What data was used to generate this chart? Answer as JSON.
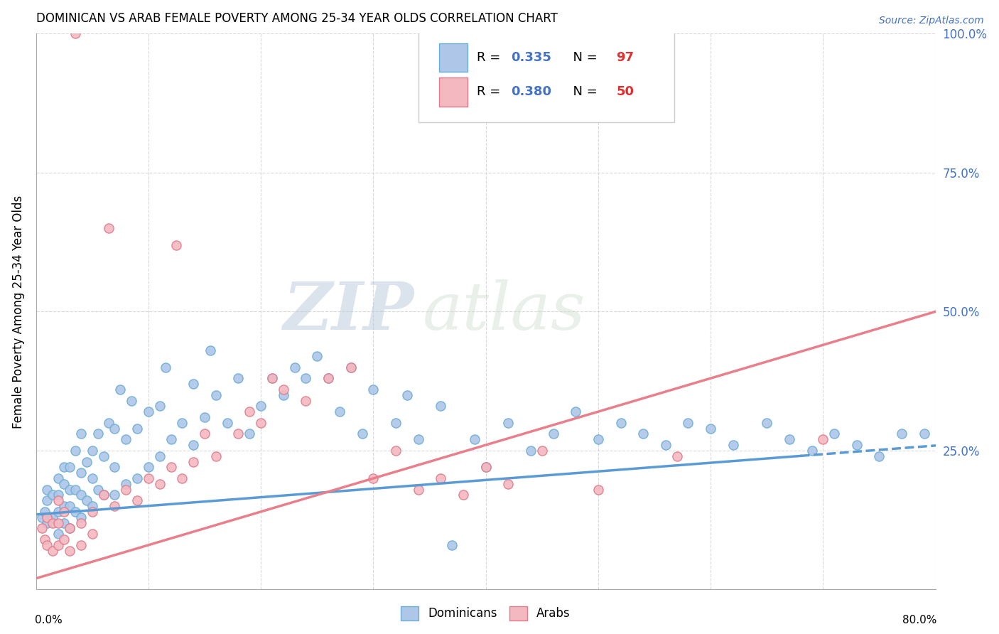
{
  "title": "DOMINICAN VS ARAB FEMALE POVERTY AMONG 25-34 YEAR OLDS CORRELATION CHART",
  "source": "Source: ZipAtlas.com",
  "ylabel": "Female Poverty Among 25-34 Year Olds",
  "xlim": [
    0.0,
    0.8
  ],
  "ylim": [
    0.0,
    1.0
  ],
  "dominican_color": "#aec6e8",
  "dominican_edge": "#6baed6",
  "arab_color": "#f4b8c1",
  "arab_edge": "#e07b8a",
  "trend_dominican_color": "#5b9bd5",
  "trend_arab_color": "#e87f8a",
  "R_dominican": 0.335,
  "N_dominican": 97,
  "R_arab": 0.38,
  "N_arab": 50,
  "dominican_label": "Dominicans",
  "arab_label": "Arabs",
  "watermark_zip": "ZIP",
  "watermark_atlas": "atlas",
  "background_color": "#ffffff",
  "grid_color": "#d0d0d0",
  "trend_dom_intercept": 0.135,
  "trend_dom_slope": 0.155,
  "trend_arab_intercept": 0.02,
  "trend_arab_slope": 0.6,
  "dominican_x": [
    0.005,
    0.008,
    0.01,
    0.01,
    0.01,
    0.015,
    0.015,
    0.02,
    0.02,
    0.02,
    0.02,
    0.025,
    0.025,
    0.025,
    0.025,
    0.03,
    0.03,
    0.03,
    0.03,
    0.035,
    0.035,
    0.035,
    0.04,
    0.04,
    0.04,
    0.04,
    0.045,
    0.045,
    0.05,
    0.05,
    0.05,
    0.055,
    0.055,
    0.06,
    0.06,
    0.065,
    0.07,
    0.07,
    0.07,
    0.075,
    0.08,
    0.08,
    0.085,
    0.09,
    0.09,
    0.1,
    0.1,
    0.11,
    0.11,
    0.115,
    0.12,
    0.13,
    0.14,
    0.14,
    0.15,
    0.155,
    0.16,
    0.17,
    0.18,
    0.19,
    0.2,
    0.21,
    0.22,
    0.23,
    0.24,
    0.25,
    0.26,
    0.27,
    0.28,
    0.29,
    0.3,
    0.32,
    0.33,
    0.34,
    0.36,
    0.37,
    0.39,
    0.4,
    0.42,
    0.44,
    0.46,
    0.48,
    0.5,
    0.52,
    0.54,
    0.56,
    0.58,
    0.6,
    0.62,
    0.65,
    0.67,
    0.69,
    0.71,
    0.73,
    0.75,
    0.77,
    0.79
  ],
  "dominican_y": [
    0.13,
    0.14,
    0.12,
    0.16,
    0.18,
    0.13,
    0.17,
    0.1,
    0.14,
    0.17,
    0.2,
    0.12,
    0.15,
    0.19,
    0.22,
    0.11,
    0.15,
    0.18,
    0.22,
    0.14,
    0.18,
    0.25,
    0.13,
    0.17,
    0.21,
    0.28,
    0.16,
    0.23,
    0.15,
    0.2,
    0.25,
    0.18,
    0.28,
    0.17,
    0.24,
    0.3,
    0.17,
    0.22,
    0.29,
    0.36,
    0.19,
    0.27,
    0.34,
    0.2,
    0.29,
    0.22,
    0.32,
    0.24,
    0.33,
    0.4,
    0.27,
    0.3,
    0.26,
    0.37,
    0.31,
    0.43,
    0.35,
    0.3,
    0.38,
    0.28,
    0.33,
    0.38,
    0.35,
    0.4,
    0.38,
    0.42,
    0.38,
    0.32,
    0.4,
    0.28,
    0.36,
    0.3,
    0.35,
    0.27,
    0.33,
    0.08,
    0.27,
    0.22,
    0.3,
    0.25,
    0.28,
    0.32,
    0.27,
    0.3,
    0.28,
    0.26,
    0.3,
    0.29,
    0.26,
    0.3,
    0.27,
    0.25,
    0.28,
    0.26,
    0.24,
    0.28,
    0.28
  ],
  "arab_x": [
    0.005,
    0.008,
    0.01,
    0.01,
    0.015,
    0.015,
    0.02,
    0.02,
    0.02,
    0.025,
    0.025,
    0.03,
    0.03,
    0.035,
    0.04,
    0.04,
    0.05,
    0.05,
    0.06,
    0.065,
    0.07,
    0.08,
    0.09,
    0.1,
    0.11,
    0.12,
    0.125,
    0.13,
    0.14,
    0.15,
    0.16,
    0.18,
    0.19,
    0.2,
    0.21,
    0.22,
    0.24,
    0.26,
    0.28,
    0.3,
    0.32,
    0.34,
    0.36,
    0.38,
    0.4,
    0.42,
    0.45,
    0.5,
    0.57,
    0.7
  ],
  "arab_y": [
    0.11,
    0.09,
    0.08,
    0.13,
    0.07,
    0.12,
    0.08,
    0.12,
    0.16,
    0.09,
    0.14,
    0.07,
    0.11,
    1.0,
    0.08,
    0.12,
    0.1,
    0.14,
    0.17,
    0.65,
    0.15,
    0.18,
    0.16,
    0.2,
    0.19,
    0.22,
    0.62,
    0.2,
    0.23,
    0.28,
    0.24,
    0.28,
    0.32,
    0.3,
    0.38,
    0.36,
    0.34,
    0.38,
    0.4,
    0.2,
    0.25,
    0.18,
    0.2,
    0.17,
    0.22,
    0.19,
    0.25,
    0.18,
    0.24,
    0.27
  ]
}
